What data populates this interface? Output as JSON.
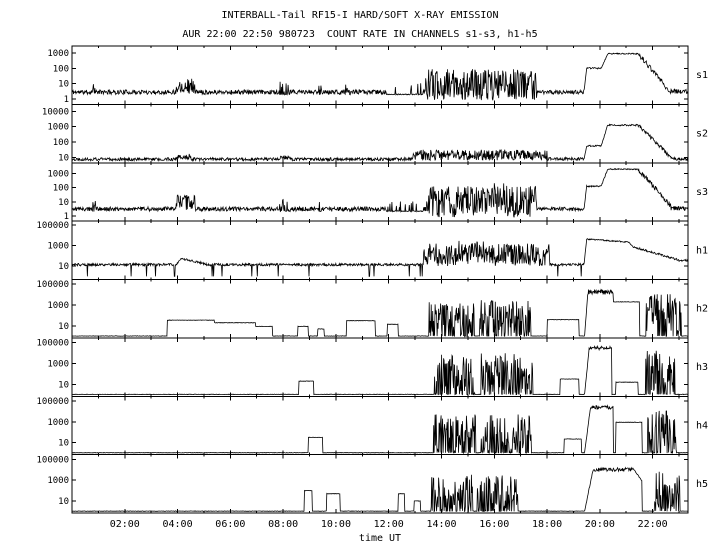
{
  "colors": {
    "trace": "#000000",
    "background": "#ffffff",
    "text": "#000000"
  },
  "chart_data": {
    "type": "line",
    "title": "INTERBALL-Tail RF15-I HARD/SOFT X-RAY EMISSION",
    "subtitle": "AUR 22:00 22:50 980723  COUNT RATE IN CHANNELS s1-s3, h1-h5",
    "xlabel": "time UT",
    "x_hours_range": [
      0,
      23.34
    ],
    "x_major_ticks": [
      {
        "h": 2,
        "label": "02:00"
      },
      {
        "h": 4,
        "label": "04:00"
      },
      {
        "h": 6,
        "label": "06:00"
      },
      {
        "h": 8,
        "label": "08:00"
      },
      {
        "h": 10,
        "label": "10:00"
      },
      {
        "h": 12,
        "label": "12:00"
      },
      {
        "h": 14,
        "label": "14:00"
      },
      {
        "h": 16,
        "label": "16:00"
      },
      {
        "h": 18,
        "label": "18:00"
      },
      {
        "h": 20,
        "label": "20:00"
      },
      {
        "h": 22,
        "label": "22:00"
      }
    ],
    "grid": false,
    "legend": "channel labels on right edge: s1,s2,s3,h1,h2,h3,h4,h5",
    "panels": [
      {
        "label": "s1",
        "seed": 11,
        "ylog_min": -0.35,
        "ylog_max": 3.45,
        "yticks": [
          {
            "label": "1000",
            "log": 3
          },
          {
            "label": "100",
            "log": 2
          },
          {
            "label": "10",
            "log": 1
          },
          {
            "label": "1",
            "log": 0
          }
        ],
        "segments": [
          {
            "m": "flat",
            "t0": 0,
            "t1": 23.34,
            "lo": 0.45,
            "j": 0.15
          },
          {
            "m": "spikes",
            "t0": 0.78,
            "t1": 0.9,
            "lo": 0.3,
            "hi": 1.05,
            "p": 0.8
          },
          {
            "m": "noise",
            "t0": 3.95,
            "t1": 4.65,
            "lo": 0.35,
            "hi": 1.35
          },
          {
            "m": "spikes",
            "t0": 7.85,
            "t1": 8.25,
            "lo": 0.3,
            "hi": 1.15,
            "p": 0.6
          },
          {
            "m": "spikes",
            "t0": 9.35,
            "t1": 9.48,
            "lo": 0.3,
            "hi": 1.0,
            "p": 0.8
          },
          {
            "m": "spikes",
            "t0": 10.35,
            "t1": 10.55,
            "lo": 0.3,
            "hi": 0.95,
            "p": 0.5
          },
          {
            "m": "spikes",
            "t0": 11.9,
            "t1": 13.3,
            "lo": 0.3,
            "hi": 1.05,
            "p": 0.12
          },
          {
            "m": "noise",
            "t0": 13.4,
            "t1": 17.6,
            "lo": -0.1,
            "hi": 1.95
          },
          {
            "m": "flat",
            "t0": 17.6,
            "t1": 19.4,
            "lo": 0.45,
            "j": 0.13
          },
          {
            "m": "ramp",
            "t0": 19.4,
            "t1": 19.5,
            "lo": 0.5,
            "hi": 2.0,
            "j": 0.05
          },
          {
            "m": "flat",
            "t0": 19.5,
            "t1": 20.05,
            "lo": 2.0,
            "j": 0.05
          },
          {
            "m": "ramp",
            "t0": 20.05,
            "t1": 20.3,
            "lo": 2.0,
            "hi": 2.95,
            "j": 0.05
          },
          {
            "m": "flat",
            "t0": 20.3,
            "t1": 21.45,
            "lo": 2.95,
            "j": 0.04
          },
          {
            "m": "ramp",
            "t0": 21.45,
            "t1": 22.6,
            "lo": 2.95,
            "hi": 0.6,
            "j": 0.18
          },
          {
            "m": "flat",
            "t0": 22.6,
            "t1": 23.34,
            "lo": 0.5,
            "j": 0.15
          }
        ]
      },
      {
        "label": "s2",
        "seed": 22,
        "ylog_min": 0.65,
        "ylog_max": 4.45,
        "yticks": [
          {
            "label": "10000",
            "log": 4
          },
          {
            "label": "1000",
            "log": 3
          },
          {
            "label": "100",
            "log": 2
          },
          {
            "label": "10",
            "log": 1
          }
        ],
        "segments": [
          {
            "m": "flat",
            "t0": 0,
            "t1": 23.34,
            "lo": 0.88,
            "j": 0.1
          },
          {
            "m": "noise",
            "t0": 3.95,
            "t1": 4.5,
            "lo": 0.85,
            "hi": 1.25
          },
          {
            "m": "noise",
            "t0": 7.9,
            "t1": 8.3,
            "lo": 0.85,
            "hi": 1.15
          },
          {
            "m": "noise",
            "t0": 12.9,
            "t1": 18.0,
            "lo": 0.8,
            "hi": 1.5
          },
          {
            "m": "flat",
            "t0": 18.0,
            "t1": 19.4,
            "lo": 0.9,
            "j": 0.1
          },
          {
            "m": "ramp",
            "t0": 19.4,
            "t1": 19.5,
            "lo": 0.9,
            "hi": 1.75,
            "j": 0.05
          },
          {
            "m": "flat",
            "t0": 19.5,
            "t1": 20.05,
            "lo": 1.75,
            "j": 0.05
          },
          {
            "m": "ramp",
            "t0": 20.05,
            "t1": 20.3,
            "lo": 1.75,
            "hi": 3.1,
            "j": 0.05
          },
          {
            "m": "flat",
            "t0": 20.3,
            "t1": 21.45,
            "lo": 3.1,
            "j": 0.05
          },
          {
            "m": "ramp",
            "t0": 21.45,
            "t1": 22.7,
            "lo": 3.1,
            "hi": 1.0,
            "j": 0.12
          },
          {
            "m": "flat",
            "t0": 22.7,
            "t1": 23.34,
            "lo": 0.9,
            "j": 0.1
          }
        ]
      },
      {
        "label": "s3",
        "seed": 33,
        "ylog_min": -0.35,
        "ylog_max": 3.75,
        "yticks": [
          {
            "label": "1000",
            "log": 3
          },
          {
            "label": "100",
            "log": 2
          },
          {
            "label": "10",
            "log": 1
          },
          {
            "label": "1",
            "log": 0
          }
        ],
        "segments": [
          {
            "m": "flat",
            "t0": 0,
            "t1": 23.34,
            "lo": 0.5,
            "j": 0.15
          },
          {
            "m": "spikes",
            "t0": 0.78,
            "t1": 0.9,
            "lo": 0.35,
            "hi": 1.1,
            "p": 0.8
          },
          {
            "m": "noise",
            "t0": 3.95,
            "t1": 4.65,
            "lo": 0.4,
            "hi": 1.5
          },
          {
            "m": "spikes",
            "t0": 7.85,
            "t1": 8.3,
            "lo": 0.35,
            "hi": 1.2,
            "p": 0.6
          },
          {
            "m": "spikes",
            "t0": 9.35,
            "t1": 9.5,
            "lo": 0.35,
            "hi": 1.0,
            "p": 0.7
          },
          {
            "m": "spikes",
            "t0": 11.9,
            "t1": 13.3,
            "lo": 0.35,
            "hi": 1.1,
            "p": 0.12
          },
          {
            "m": "noise",
            "t0": 13.4,
            "t1": 17.6,
            "lo": -0.1,
            "hi": 2.1
          },
          {
            "m": "noise",
            "t0": 15.9,
            "t1": 16.5,
            "lo": 0.0,
            "hi": 2.5
          },
          {
            "m": "flat",
            "t0": 17.6,
            "t1": 19.4,
            "lo": 0.5,
            "j": 0.13
          },
          {
            "m": "ramp",
            "t0": 19.4,
            "t1": 19.5,
            "lo": 0.5,
            "hi": 2.1,
            "j": 0.05
          },
          {
            "m": "flat",
            "t0": 19.5,
            "t1": 20.05,
            "lo": 2.1,
            "j": 0.05
          },
          {
            "m": "ramp",
            "t0": 20.05,
            "t1": 20.3,
            "lo": 2.1,
            "hi": 3.3,
            "j": 0.05
          },
          {
            "m": "flat",
            "t0": 20.3,
            "t1": 21.45,
            "lo": 3.3,
            "j": 0.04
          },
          {
            "m": "ramp",
            "t0": 21.45,
            "t1": 22.7,
            "lo": 3.3,
            "hi": 0.7,
            "j": 0.18
          },
          {
            "m": "flat",
            "t0": 22.7,
            "t1": 23.34,
            "lo": 0.55,
            "j": 0.15
          }
        ]
      },
      {
        "label": "h1",
        "seed": 44,
        "ylog_min": -0.3,
        "ylog_max": 5.4,
        "yticks": [
          {
            "label": "100000",
            "log": 5
          },
          {
            "label": "1000",
            "log": 3
          },
          {
            "label": "10",
            "log": 1
          }
        ],
        "segments": [
          {
            "m": "flat",
            "t0": 0,
            "t1": 23.34,
            "lo": 1.15,
            "j": 0.12
          },
          {
            "m": "dips",
            "t0": 0.2,
            "t1": 13.3,
            "lo": 1.15,
            "lo2": 0.0,
            "p": 0.04,
            "j": 0.12
          },
          {
            "m": "ramp",
            "t0": 3.95,
            "t1": 4.15,
            "lo": 1.15,
            "hi": 1.75,
            "j": 0.08
          },
          {
            "m": "ramp",
            "t0": 4.15,
            "t1": 5.1,
            "lo": 1.75,
            "hi": 1.2,
            "j": 0.1
          },
          {
            "m": "noise",
            "t0": 13.3,
            "t1": 18.1,
            "lo": 1.0,
            "hi": 3.2
          },
          {
            "m": "noise",
            "t0": 14.6,
            "t1": 15.6,
            "lo": 1.2,
            "hi": 3.5
          },
          {
            "m": "dips",
            "t0": 18.1,
            "t1": 19.35,
            "lo": 1.15,
            "lo2": 0.0,
            "p": 0.05,
            "j": 0.12
          },
          {
            "m": "ramp",
            "t0": 19.4,
            "t1": 19.5,
            "lo": 1.2,
            "hi": 3.65,
            "j": 0.05
          },
          {
            "m": "ramp",
            "t0": 19.5,
            "t1": 21.1,
            "lo": 3.65,
            "hi": 3.35,
            "j": 0.06
          },
          {
            "m": "ramp",
            "t0": 21.1,
            "t1": 21.25,
            "lo": 3.35,
            "hi": 2.9,
            "j": 0.05
          },
          {
            "m": "ramp",
            "t0": 21.25,
            "t1": 23.0,
            "lo": 2.9,
            "hi": 1.6,
            "j": 0.1
          },
          {
            "m": "flat",
            "t0": 23.0,
            "t1": 23.34,
            "lo": 1.55,
            "j": 0.1
          }
        ]
      },
      {
        "label": "h2",
        "seed": 55,
        "ylog_min": -0.15,
        "ylog_max": 5.45,
        "yticks": [
          {
            "label": "100000",
            "log": 5
          },
          {
            "label": "1000",
            "log": 3
          },
          {
            "label": "10",
            "log": 1
          }
        ],
        "segments": [
          {
            "m": "flat",
            "t0": 0,
            "t1": 23.34,
            "lo": 0.03,
            "j": 0.02
          },
          {
            "m": "flat",
            "t0": 3.6,
            "t1": 5.4,
            "lo": 1.55,
            "j": 0.02
          },
          {
            "m": "flat",
            "t0": 5.4,
            "t1": 6.95,
            "lo": 1.3,
            "j": 0.02
          },
          {
            "m": "flat",
            "t0": 6.95,
            "t1": 7.6,
            "lo": 0.95,
            "j": 0.02
          },
          {
            "m": "flat",
            "t0": 8.55,
            "t1": 8.95,
            "lo": 0.95,
            "j": 0.02
          },
          {
            "m": "flat",
            "t0": 9.3,
            "t1": 9.55,
            "lo": 0.7,
            "j": 0.02
          },
          {
            "m": "flat",
            "t0": 10.4,
            "t1": 11.5,
            "lo": 1.5,
            "j": 0.02
          },
          {
            "m": "flat",
            "t0": 11.95,
            "t1": 12.35,
            "lo": 1.15,
            "j": 0.02
          },
          {
            "m": "spikes",
            "t0": 13.5,
            "t1": 15.25,
            "lo": 0.03,
            "hi": 3.4,
            "p": 0.7
          },
          {
            "m": "spikes",
            "t0": 15.45,
            "t1": 17.4,
            "lo": 0.03,
            "hi": 3.5,
            "p": 0.75
          },
          {
            "m": "flat",
            "t0": 18.0,
            "t1": 19.2,
            "lo": 1.6,
            "j": 0.02
          },
          {
            "m": "ramp",
            "t0": 19.42,
            "t1": 19.55,
            "lo": 0.05,
            "hi": 4.35,
            "j": 0.05
          },
          {
            "m": "noise",
            "t0": 19.55,
            "t1": 20.5,
            "lo": 4.0,
            "hi": 4.5
          },
          {
            "m": "flat",
            "t0": 20.5,
            "t1": 21.5,
            "lo": 3.3,
            "j": 0.02
          },
          {
            "m": "spikes",
            "t0": 21.75,
            "t1": 23.1,
            "lo": 0.03,
            "hi": 4.1,
            "p": 0.8
          }
        ]
      },
      {
        "label": "h3",
        "seed": 66,
        "ylog_min": -0.15,
        "ylog_max": 5.45,
        "yticks": [
          {
            "label": "100000",
            "log": 5
          },
          {
            "label": "1000",
            "log": 3
          },
          {
            "label": "10",
            "log": 1
          }
        ],
        "segments": [
          {
            "m": "flat",
            "t0": 0,
            "t1": 23.34,
            "lo": 0.03,
            "j": 0.02
          },
          {
            "m": "flat",
            "t0": 8.6,
            "t1": 9.15,
            "lo": 1.3,
            "j": 0.02
          },
          {
            "m": "spikes",
            "t0": 13.7,
            "t1": 15.3,
            "lo": 0.03,
            "hi": 3.9,
            "p": 0.7
          },
          {
            "m": "spikes",
            "t0": 15.5,
            "t1": 17.45,
            "lo": 0.03,
            "hi": 4.0,
            "p": 0.72
          },
          {
            "m": "flat",
            "t0": 18.5,
            "t1": 19.2,
            "lo": 1.5,
            "j": 0.02
          },
          {
            "m": "ramp",
            "t0": 19.42,
            "t1": 19.6,
            "lo": 0.05,
            "hi": 4.55,
            "j": 0.06
          },
          {
            "m": "noise",
            "t0": 19.6,
            "t1": 20.45,
            "lo": 4.3,
            "hi": 4.65
          },
          {
            "m": "flat",
            "t0": 20.6,
            "t1": 21.45,
            "lo": 1.2,
            "j": 0.02
          },
          {
            "m": "spikes",
            "t0": 21.7,
            "t1": 22.85,
            "lo": 0.03,
            "hi": 4.3,
            "p": 0.75
          }
        ]
      },
      {
        "label": "h4",
        "seed": 77,
        "ylog_min": -0.15,
        "ylog_max": 5.45,
        "yticks": [
          {
            "label": "100000",
            "log": 5
          },
          {
            "label": "1000",
            "log": 3
          },
          {
            "label": "10",
            "log": 1
          }
        ],
        "segments": [
          {
            "m": "flat",
            "t0": 0,
            "t1": 23.34,
            "lo": 0.03,
            "j": 0.02
          },
          {
            "m": "flat",
            "t0": 8.95,
            "t1": 9.5,
            "lo": 1.5,
            "j": 0.02
          },
          {
            "m": "spikes",
            "t0": 13.7,
            "t1": 15.3,
            "lo": 0.03,
            "hi": 3.7,
            "p": 0.68
          },
          {
            "m": "spikes",
            "t0": 15.5,
            "t1": 17.4,
            "lo": 0.03,
            "hi": 3.8,
            "p": 0.7
          },
          {
            "m": "flat",
            "t0": 18.65,
            "t1": 19.3,
            "lo": 1.35,
            "j": 0.02
          },
          {
            "m": "ramp",
            "t0": 19.42,
            "t1": 19.65,
            "lo": 0.05,
            "hi": 4.45,
            "j": 0.06
          },
          {
            "m": "noise",
            "t0": 19.65,
            "t1": 20.5,
            "lo": 4.2,
            "hi": 4.55
          },
          {
            "m": "flat",
            "t0": 20.6,
            "t1": 21.6,
            "lo": 2.95,
            "j": 0.02
          },
          {
            "m": "spikes",
            "t0": 21.8,
            "t1": 22.9,
            "lo": 0.03,
            "hi": 4.15,
            "p": 0.75
          }
        ]
      },
      {
        "label": "h5",
        "seed": 88,
        "ylog_min": -0.15,
        "ylog_max": 5.45,
        "yticks": [
          {
            "label": "100000",
            "log": 5
          },
          {
            "label": "1000",
            "log": 3
          },
          {
            "label": "10",
            "log": 1
          }
        ],
        "segments": [
          {
            "m": "flat",
            "t0": 0,
            "t1": 23.34,
            "lo": 0.03,
            "j": 0.02
          },
          {
            "m": "flat",
            "t0": 8.8,
            "t1": 9.1,
            "lo": 2.0,
            "j": 0.02
          },
          {
            "m": "flat",
            "t0": 9.65,
            "t1": 10.15,
            "lo": 1.7,
            "j": 0.02
          },
          {
            "m": "flat",
            "t0": 12.35,
            "t1": 12.6,
            "lo": 1.7,
            "j": 0.02
          },
          {
            "m": "flat",
            "t0": 12.95,
            "t1": 13.2,
            "lo": 1.0,
            "j": 0.02
          },
          {
            "m": "spikes",
            "t0": 13.6,
            "t1": 15.2,
            "lo": 0.03,
            "hi": 3.55,
            "p": 0.7
          },
          {
            "m": "spikes",
            "t0": 15.35,
            "t1": 16.9,
            "lo": 0.03,
            "hi": 3.45,
            "p": 0.65
          },
          {
            "m": "ramp",
            "t0": 19.42,
            "t1": 19.75,
            "lo": 0.05,
            "hi": 4.05,
            "j": 0.08
          },
          {
            "m": "noise",
            "t0": 19.75,
            "t1": 21.3,
            "lo": 3.85,
            "hi": 4.2
          },
          {
            "m": "ramp",
            "t0": 21.3,
            "t1": 21.6,
            "lo": 4.0,
            "hi": 2.9,
            "j": 0.05
          },
          {
            "m": "spikes",
            "t0": 22.05,
            "t1": 23.05,
            "lo": 0.03,
            "hi": 3.8,
            "p": 0.72
          }
        ]
      }
    ]
  }
}
